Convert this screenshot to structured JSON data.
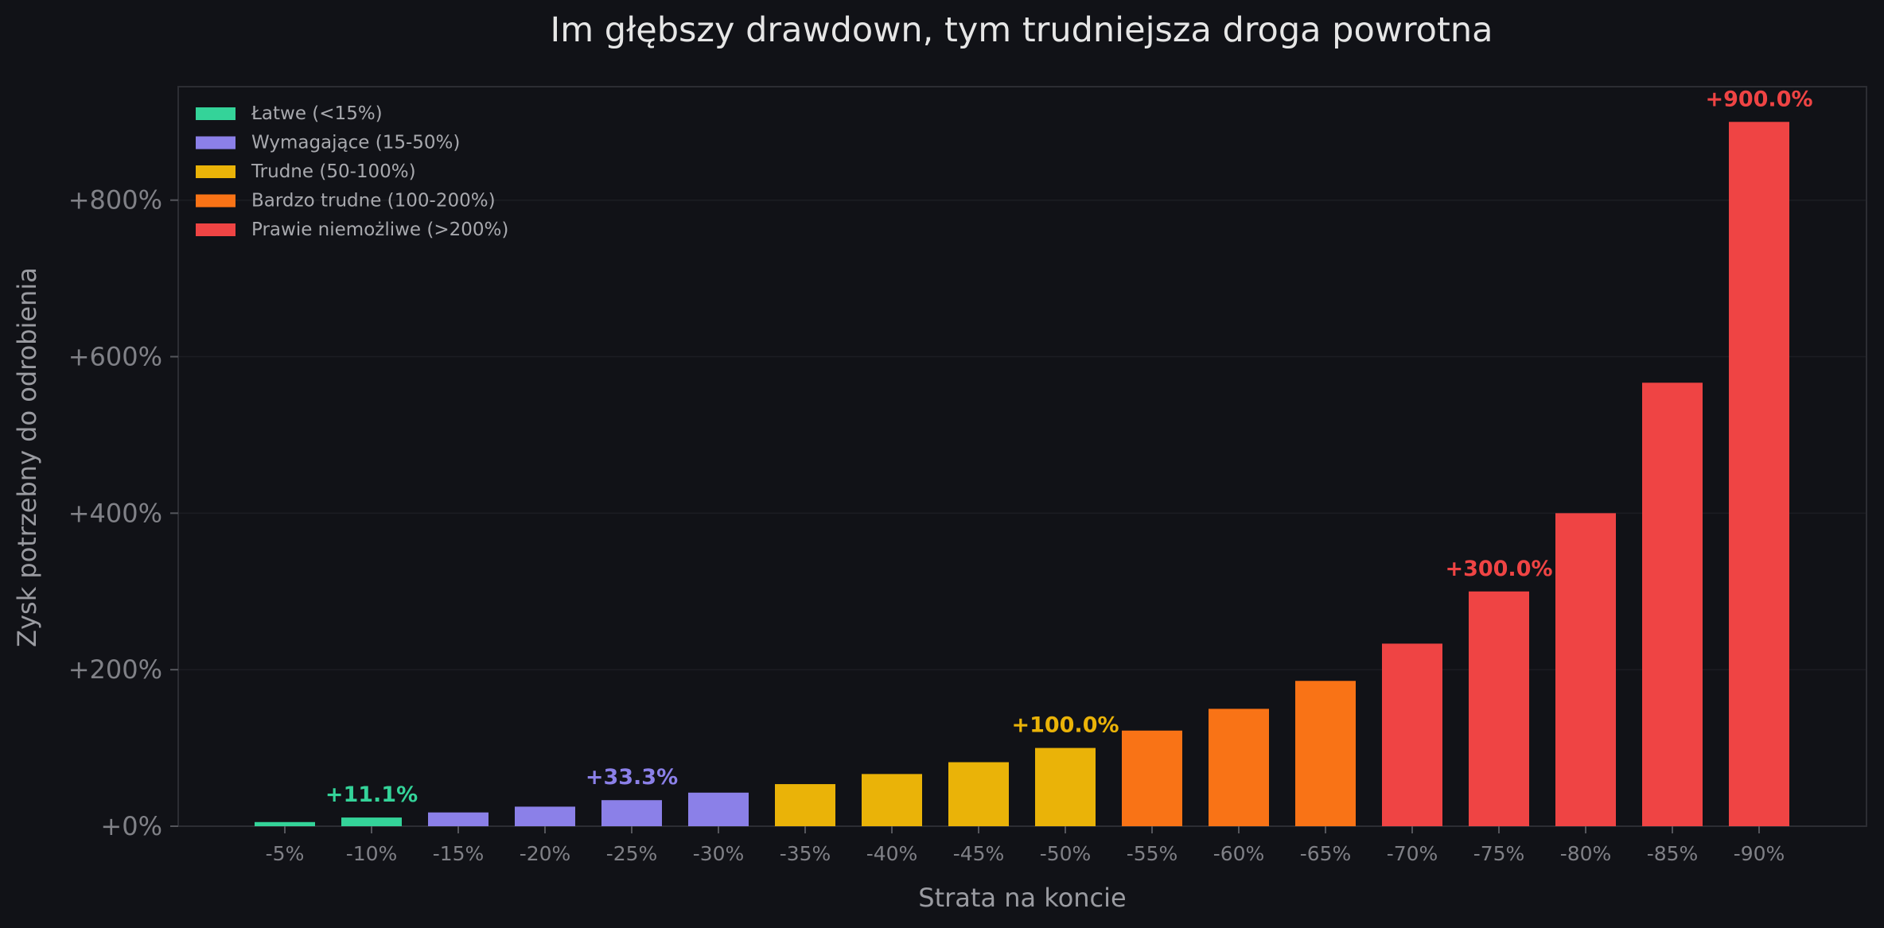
{
  "chart_data": {
    "type": "bar",
    "title": "Im głębszy drawdown, tym trudniejsza droga powrotna",
    "xlabel": "Strata na koncie",
    "ylabel": "Zysk potrzebny do odrobienia",
    "ylim": [
      0,
      945
    ],
    "grid": true,
    "legend_position": "top-left",
    "y_ticks": [
      {
        "value": 0,
        "label": "+0%"
      },
      {
        "value": 200,
        "label": "+200%"
      },
      {
        "value": 400,
        "label": "+400%"
      },
      {
        "value": 600,
        "label": "+600%"
      },
      {
        "value": 800,
        "label": "+800%"
      }
    ],
    "categories": [
      "-5%",
      "-10%",
      "-15%",
      "-20%",
      "-25%",
      "-30%",
      "-35%",
      "-40%",
      "-45%",
      "-50%",
      "-55%",
      "-60%",
      "-65%",
      "-70%",
      "-75%",
      "-80%",
      "-85%",
      "-90%"
    ],
    "values": [
      5.3,
      11.1,
      17.6,
      25.0,
      33.3,
      42.9,
      53.8,
      66.7,
      81.8,
      100.0,
      122.2,
      150.0,
      185.7,
      233.3,
      300.0,
      400.0,
      566.7,
      900.0
    ],
    "bar_groups": [
      0,
      0,
      1,
      1,
      1,
      1,
      2,
      2,
      2,
      2,
      3,
      3,
      3,
      4,
      4,
      4,
      4,
      4
    ],
    "groups": [
      {
        "name": "Łatwe (<15%)",
        "color": "#34d399"
      },
      {
        "name": "Wymagające (15-50%)",
        "color": "#8b80e8"
      },
      {
        "name": "Trudne (50-100%)",
        "color": "#eab308"
      },
      {
        "name": "Bardzo trudne (100-200%)",
        "color": "#f97316"
      },
      {
        "name": "Prawie niemożliwe (>200%)",
        "color": "#ef4444"
      }
    ],
    "annotations": [
      {
        "index": 1,
        "text": "+11.1%"
      },
      {
        "index": 4,
        "text": "+33.3%"
      },
      {
        "index": 9,
        "text": "+100.0%"
      },
      {
        "index": 14,
        "text": "+300.0%"
      },
      {
        "index": 17,
        "text": "+900.0%"
      }
    ]
  },
  "colors": {
    "background": "#111217",
    "grid": "#1c1d23",
    "frame": "#2c2d33"
  }
}
